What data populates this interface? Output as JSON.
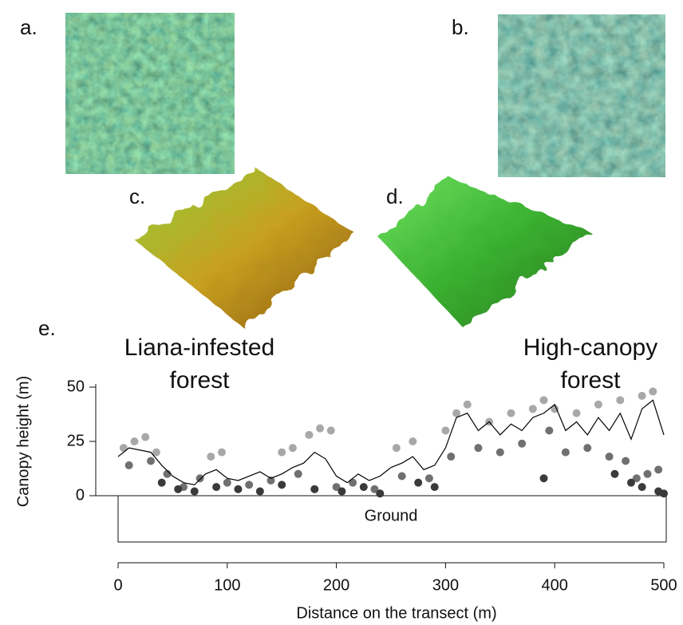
{
  "panels": {
    "a": "a.",
    "b": "b.",
    "c": "c.",
    "d": "d.",
    "e": "e."
  },
  "chart_data": {
    "type": "scatter",
    "annotations": [
      [
        "Liana-infested",
        "forest"
      ],
      [
        "High-canopy",
        "forest"
      ]
    ],
    "ground_label": "Ground",
    "x_label": "Distance on the transect (m)",
    "y_label": "Canopy height (m)",
    "xlim": [
      0,
      500
    ],
    "xticks": [
      0,
      100,
      200,
      300,
      400,
      500
    ],
    "ylim": [
      0,
      50
    ],
    "yticks": [
      0,
      25,
      50
    ],
    "series": [
      {
        "kind": "points",
        "color": "#a8a8a8",
        "x": [
          5,
          15,
          25,
          35,
          85,
          95,
          150,
          160,
          175,
          185,
          195,
          255,
          270,
          300,
          310,
          320,
          340,
          360,
          380,
          390,
          400,
          420,
          440,
          460,
          480,
          490
        ],
        "values": [
          22,
          25,
          27,
          20,
          18,
          20,
          20,
          22,
          28,
          31,
          30,
          22,
          25,
          30,
          38,
          42,
          34,
          38,
          40,
          44,
          40,
          38,
          42,
          44,
          46,
          48
        ]
      },
      {
        "kind": "points",
        "color": "#707070",
        "x": [
          10,
          30,
          45,
          60,
          75,
          100,
          120,
          140,
          165,
          200,
          215,
          235,
          260,
          285,
          305,
          330,
          350,
          370,
          395,
          410,
          430,
          450,
          465,
          475,
          485,
          495
        ],
        "values": [
          14,
          16,
          10,
          4,
          8,
          6,
          5,
          7,
          10,
          4,
          6,
          3,
          9,
          8,
          18,
          22,
          20,
          24,
          30,
          20,
          22,
          18,
          16,
          8,
          10,
          12
        ]
      },
      {
        "kind": "points",
        "color": "#3a3a3a",
        "x": [
          40,
          55,
          70,
          90,
          110,
          130,
          150,
          180,
          205,
          225,
          240,
          275,
          290,
          390,
          455,
          470,
          480,
          495,
          500
        ],
        "values": [
          6,
          3,
          2,
          4,
          3,
          2,
          5,
          3,
          2,
          4,
          1,
          6,
          4,
          8,
          10,
          6,
          4,
          2,
          1
        ]
      },
      {
        "kind": "line",
        "color": "#000000",
        "x": [
          0,
          10,
          20,
          30,
          40,
          50,
          60,
          70,
          80,
          90,
          100,
          110,
          120,
          130,
          140,
          150,
          160,
          170,
          180,
          190,
          200,
          210,
          220,
          230,
          240,
          250,
          260,
          270,
          280,
          290,
          300,
          310,
          320,
          330,
          340,
          350,
          360,
          370,
          380,
          390,
          400,
          410,
          420,
          430,
          440,
          450,
          460,
          470,
          480,
          490,
          500
        ],
        "values": [
          18,
          22,
          21,
          20,
          14,
          9,
          6,
          5,
          10,
          12,
          8,
          7,
          9,
          11,
          8,
          10,
          13,
          15,
          20,
          17,
          9,
          6,
          10,
          7,
          9,
          13,
          15,
          18,
          12,
          14,
          22,
          36,
          38,
          30,
          34,
          28,
          33,
          30,
          36,
          38,
          42,
          30,
          34,
          28,
          36,
          30,
          38,
          26,
          40,
          44,
          28
        ]
      }
    ]
  }
}
